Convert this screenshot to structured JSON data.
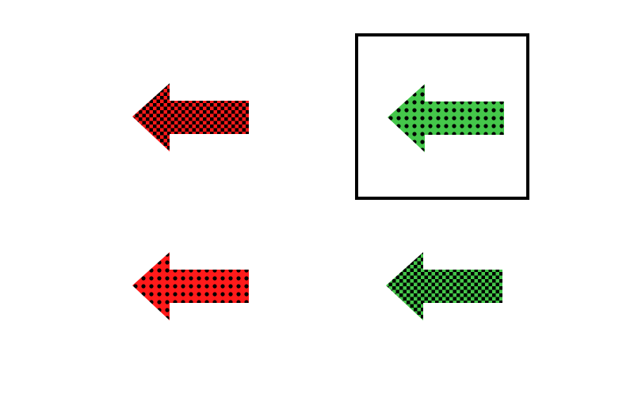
{
  "colors": {
    "red": "#ff1a1a",
    "green": "#44c74a",
    "dot": "#000000",
    "selection_border": "#000000",
    "background": "#ffffff"
  },
  "grid": {
    "selected_index": 1,
    "items": [
      {
        "direction": "left",
        "color": "red",
        "pattern": "checkered"
      },
      {
        "direction": "left",
        "color": "green",
        "pattern": "dots"
      },
      {
        "direction": "left",
        "color": "red",
        "pattern": "dots"
      },
      {
        "direction": "left",
        "color": "green",
        "pattern": "checkered"
      }
    ]
  }
}
